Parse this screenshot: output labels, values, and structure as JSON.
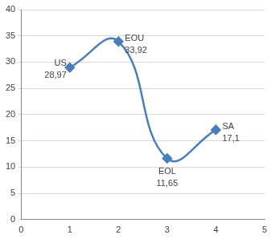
{
  "chart_data": {
    "type": "line",
    "x": [
      1,
      2,
      3,
      4
    ],
    "values": [
      28.97,
      33.92,
      11.65,
      17.1
    ],
    "point_labels": [
      "US",
      "EOU",
      "EOL",
      "SA"
    ],
    "value_labels": [
      "28,97",
      "33,92",
      "11,65",
      "17,1"
    ],
    "data_labels": true,
    "color": "#4a7ebb",
    "marker": "diamond",
    "line_style": "solid",
    "xlim": [
      0,
      5
    ],
    "xticks": [
      0,
      1,
      2,
      3,
      4,
      5
    ],
    "ylim": [
      0,
      40
    ],
    "yticks": [
      0,
      5,
      10,
      15,
      20,
      25,
      30,
      35,
      40
    ],
    "grid": "y"
  }
}
